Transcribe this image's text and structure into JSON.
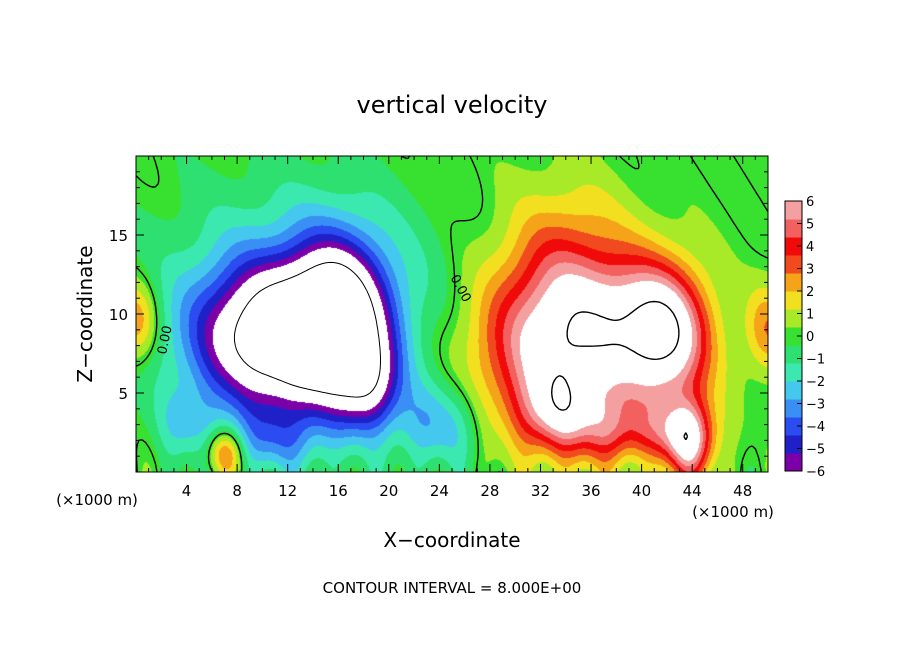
{
  "chart_data": {
    "type": "heatmap",
    "title": "vertical velocity",
    "xlabel": "X−coordinate",
    "ylabel": "Z−coordinate",
    "x_unit_label": "(×1000 m)",
    "x_unit_label_right": "(×1000 m)",
    "xlim": [
      0,
      50
    ],
    "ylim": [
      0,
      20
    ],
    "x_ticks": [
      4,
      8,
      12,
      16,
      20,
      24,
      28,
      32,
      36,
      40,
      44,
      48
    ],
    "y_ticks": [
      5,
      10,
      15
    ],
    "footer": "CONTOUR INTERVAL = 8.000E+00",
    "contour_labels": [
      {
        "text": "0.00",
        "x": 2.6,
        "y": 8.3,
        "rotate": -78
      },
      {
        "text": "0.00",
        "x": 25.4,
        "y": 11.5,
        "rotate": 62
      }
    ],
    "colorbar": {
      "ticks": [
        6,
        5,
        4,
        3,
        2,
        1,
        0,
        -1,
        -2,
        -3,
        -4,
        -5,
        -6
      ],
      "tick_labels": [
        "6",
        "5",
        "4",
        "3",
        "2",
        "1",
        "0",
        "−1",
        "−2",
        "−3",
        "−4",
        "−5",
        "−6"
      ],
      "range": [
        -6,
        6
      ],
      "colors": [
        "#7b00a8",
        "#2020c8",
        "#2a4cf0",
        "#3a8ff5",
        "#45c8ee",
        "#3be8b0",
        "#2ee070",
        "#38e030",
        "#a8ea28",
        "#f2e020",
        "#f5a41a",
        "#f04a1e",
        "#f00a0a",
        "#f36060",
        "#f5a0a0"
      ]
    },
    "features": [
      {
        "kind": "updraft",
        "x": 34,
        "y": 7.5,
        "sx": 5.0,
        "sy": 3.6,
        "peak": 6.4
      },
      {
        "kind": "updraft",
        "x": 34,
        "y": 12.5,
        "sx": 3.6,
        "sy": 3.8,
        "peak": 3.2
      },
      {
        "kind": "updraft",
        "x": 42.2,
        "y": 8.5,
        "sx": 2.3,
        "sy": 3.0,
        "peak": 6.2
      },
      {
        "kind": "updraft",
        "x": 39.5,
        "y": 10.5,
        "sx": 2.5,
        "sy": 2.5,
        "peak": 2.2
      },
      {
        "kind": "updraft",
        "x": 33.5,
        "y": 3.5,
        "sx": 2.4,
        "sy": 1.8,
        "peak": 3.6
      },
      {
        "kind": "updraft",
        "x": 43.8,
        "y": 2.0,
        "sx": 1.4,
        "sy": 1.8,
        "peak": 6.1
      },
      {
        "kind": "updraft",
        "x": 7.0,
        "y": 1.2,
        "sx": 1.0,
        "sy": 1.1,
        "peak": 3.6
      },
      {
        "kind": "updraft",
        "x": 0.0,
        "y": 9.5,
        "sx": 1.2,
        "sy": 1.8,
        "peak": 3.2
      },
      {
        "kind": "updraft",
        "x": 50.0,
        "y": 9.0,
        "sx": 1.3,
        "sy": 2.0,
        "peak": 2.6
      },
      {
        "kind": "updraft",
        "x": 41.0,
        "y": 2.5,
        "sx": 2.0,
        "sy": 1.3,
        "peak": 2.2
      },
      {
        "kind": "updraft",
        "x": 37.5,
        "y": 2.5,
        "sx": 1.5,
        "sy": 1.5,
        "peak": 2.0
      },
      {
        "kind": "downdraft",
        "x": 11.0,
        "y": 8.5,
        "sx": 4.2,
        "sy": 3.0,
        "peak": -7.5
      },
      {
        "kind": "downdraft",
        "x": 16.0,
        "y": 9.5,
        "sx": 2.6,
        "sy": 3.4,
        "peak": -7.5
      },
      {
        "kind": "downdraft",
        "x": 13.0,
        "y": 10.0,
        "sx": 7.0,
        "sy": 5.0,
        "peak": -3.4
      },
      {
        "kind": "downdraft",
        "x": 18.5,
        "y": 5.5,
        "sx": 1.6,
        "sy": 2.0,
        "peak": -4.0
      },
      {
        "kind": "downdraft",
        "x": 24.0,
        "y": 3.0,
        "sx": 2.5,
        "sy": 2.0,
        "peak": -2.5
      },
      {
        "kind": "downdraft",
        "x": 11.0,
        "y": 2.0,
        "sx": 2.5,
        "sy": 1.5,
        "peak": -2.0
      },
      {
        "kind": "downdraft",
        "x": 4.0,
        "y": 3.0,
        "sx": 1.8,
        "sy": 1.6,
        "peak": -1.5
      }
    ]
  }
}
